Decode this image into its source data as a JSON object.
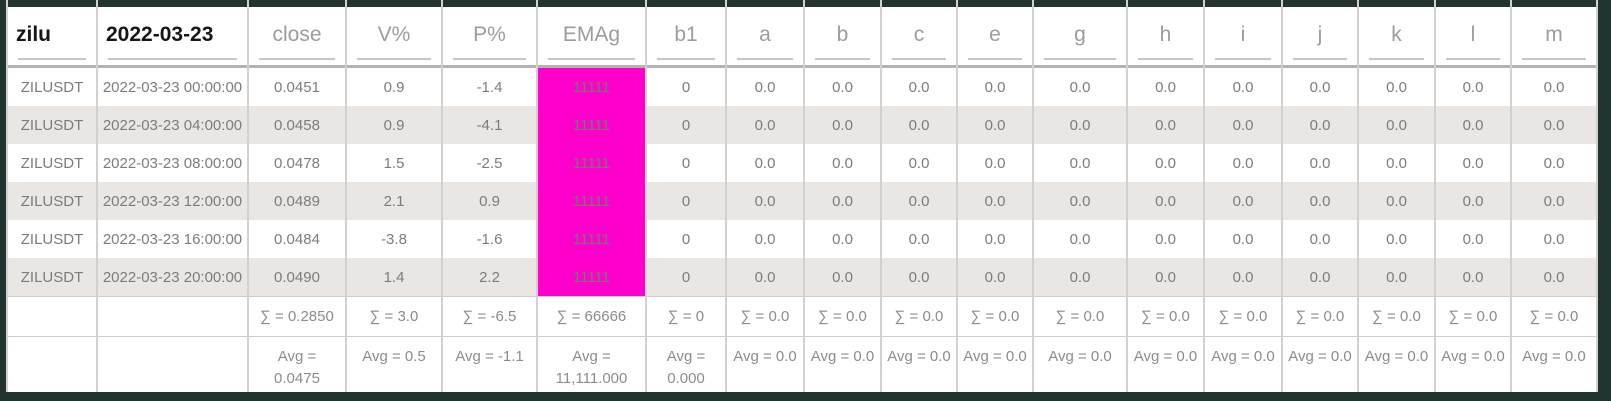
{
  "table": {
    "columns": [
      {
        "key": "zilu",
        "label": "zilu",
        "emphasis": true
      },
      {
        "key": "date",
        "label": "2022-03-23",
        "emphasis": true
      },
      {
        "key": "close",
        "label": "close"
      },
      {
        "key": "v-pct",
        "label": "V%"
      },
      {
        "key": "p-pct",
        "label": "P%"
      },
      {
        "key": "emag",
        "label": "EMAg",
        "highlighted": true
      },
      {
        "key": "b1",
        "label": "b1"
      },
      {
        "key": "a",
        "label": "a"
      },
      {
        "key": "b",
        "label": "b"
      },
      {
        "key": "c",
        "label": "c"
      },
      {
        "key": "e",
        "label": "e"
      },
      {
        "key": "g",
        "label": "g"
      },
      {
        "key": "h",
        "label": "h"
      },
      {
        "key": "i",
        "label": "i"
      },
      {
        "key": "j",
        "label": "j"
      },
      {
        "key": "k",
        "label": "k"
      },
      {
        "key": "l",
        "label": "l"
      },
      {
        "key": "m",
        "label": "m"
      }
    ],
    "rows": [
      [
        "ZILUSDT",
        "2022-03-23 00:00:00",
        "0.0451",
        "0.9",
        "-1.4",
        "11111",
        "0",
        "0.0",
        "0.0",
        "0.0",
        "0.0",
        "0.0",
        "0.0",
        "0.0",
        "0.0",
        "0.0",
        "0.0",
        "0.0"
      ],
      [
        "ZILUSDT",
        "2022-03-23 04:00:00",
        "0.0458",
        "0.9",
        "-4.1",
        "11111",
        "0",
        "0.0",
        "0.0",
        "0.0",
        "0.0",
        "0.0",
        "0.0",
        "0.0",
        "0.0",
        "0.0",
        "0.0",
        "0.0"
      ],
      [
        "ZILUSDT",
        "2022-03-23 08:00:00",
        "0.0478",
        "1.5",
        "-2.5",
        "11111",
        "0",
        "0.0",
        "0.0",
        "0.0",
        "0.0",
        "0.0",
        "0.0",
        "0.0",
        "0.0",
        "0.0",
        "0.0",
        "0.0"
      ],
      [
        "ZILUSDT",
        "2022-03-23 12:00:00",
        "0.0489",
        "2.1",
        "0.9",
        "11111",
        "0",
        "0.0",
        "0.0",
        "0.0",
        "0.0",
        "0.0",
        "0.0",
        "0.0",
        "0.0",
        "0.0",
        "0.0",
        "0.0"
      ],
      [
        "ZILUSDT",
        "2022-03-23 16:00:00",
        "0.0484",
        "-3.8",
        "-1.6",
        "11111",
        "0",
        "0.0",
        "0.0",
        "0.0",
        "0.0",
        "0.0",
        "0.0",
        "0.0",
        "0.0",
        "0.0",
        "0.0",
        "0.0"
      ],
      [
        "ZILUSDT",
        "2022-03-23 20:00:00",
        "0.0490",
        "1.4",
        "2.2",
        "11111",
        "0",
        "0.0",
        "0.0",
        "0.0",
        "0.0",
        "0.0",
        "0.0",
        "0.0",
        "0.0",
        "0.0",
        "0.0",
        "0.0"
      ]
    ],
    "sum_row": [
      "",
      "",
      "∑ = 0.2850",
      "∑ = 3.0",
      "∑ = -6.5",
      "∑ = 66666",
      "∑ = 0",
      "∑ = 0.0",
      "∑ = 0.0",
      "∑ = 0.0",
      "∑ = 0.0",
      "∑ = 0.0",
      "∑ = 0.0",
      "∑ = 0.0",
      "∑ = 0.0",
      "∑ = 0.0",
      "∑ = 0.0",
      "∑ = 0.0"
    ],
    "avg_row": [
      "",
      "",
      "Avg = 0.0475",
      "Avg = 0.5",
      "Avg = -1.1",
      "Avg = 11,111.000",
      "Avg = 0.000",
      "Avg = 0.0",
      "Avg = 0.0",
      "Avg = 0.0",
      "Avg = 0.0",
      "Avg = 0.0",
      "Avg = 0.0",
      "Avg = 0.0",
      "Avg = 0.0",
      "Avg = 0.0",
      "Avg = 0.0",
      "Avg = 0.0"
    ],
    "colors": {
      "highlight_bg": "#ff00cc",
      "highlight_text": "#6e7b70",
      "frame": "#213430",
      "alt_row_bg": "#e9e6e3",
      "grid_line": "#d3d1cf",
      "header_rule": "#b5b3b1"
    }
  }
}
